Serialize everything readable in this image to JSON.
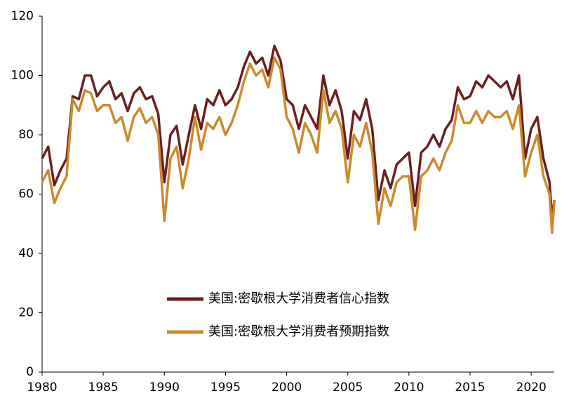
{
  "chart_data": {
    "type": "line",
    "x": [
      1980,
      1980.5,
      1981,
      1981.5,
      1982,
      1982.5,
      1983,
      1983.5,
      1984,
      1984.5,
      1985,
      1985.5,
      1986,
      1986.5,
      1987,
      1987.5,
      1988,
      1988.5,
      1989,
      1989.5,
      1990,
      1990.5,
      1991,
      1991.5,
      1992,
      1992.5,
      1993,
      1993.5,
      1994,
      1994.5,
      1995,
      1995.5,
      1996,
      1996.5,
      1997,
      1997.5,
      1998,
      1998.5,
      1999,
      1999.5,
      2000,
      2000.5,
      2001,
      2001.5,
      2002,
      2002.5,
      2003,
      2003.5,
      2004,
      2004.5,
      2005,
      2005.5,
      2006,
      2006.5,
      2007,
      2007.5,
      2008,
      2008.5,
      2009,
      2009.5,
      2010,
      2010.5,
      2011,
      2011.5,
      2012,
      2012.5,
      2013,
      2013.5,
      2014,
      2014.5,
      2015,
      2015.5,
      2016,
      2016.5,
      2017,
      2017.5,
      2018,
      2018.5,
      2019,
      2019.5,
      2020,
      2020.5,
      2021,
      2021.5,
      2021.7,
      2021.9
    ],
    "series": [
      {
        "name": "美国:密歇根大学消费者信心指数",
        "color": "#6b1f1f",
        "values": [
          72,
          76,
          63,
          68,
          72,
          93,
          92,
          100,
          100,
          93,
          96,
          98,
          92,
          94,
          88,
          94,
          96,
          92,
          93,
          87,
          64,
          80,
          83,
          70,
          80,
          90,
          82,
          92,
          90,
          95,
          90,
          92,
          96,
          103,
          108,
          104,
          106,
          100,
          110,
          105,
          92,
          90,
          82,
          90,
          86,
          82,
          100,
          90,
          95,
          88,
          72,
          88,
          85,
          92,
          82,
          58,
          68,
          62,
          70,
          72,
          74,
          56,
          74,
          76,
          80,
          76,
          82,
          85,
          96,
          92,
          93,
          98,
          96,
          100,
          98,
          96,
          98,
          92,
          100,
          72,
          82,
          86,
          72,
          64,
          52,
          58
        ]
      },
      {
        "name": "美国:密歇根大学消费者预期指数",
        "color": "#c98b2e",
        "values": [
          64,
          68,
          57,
          62,
          66,
          92,
          88,
          95,
          94,
          88,
          90,
          90,
          84,
          86,
          78,
          86,
          89,
          84,
          86,
          80,
          51,
          72,
          76,
          62,
          72,
          86,
          75,
          84,
          82,
          86,
          80,
          84,
          90,
          98,
          104,
          100,
          102,
          96,
          106,
          102,
          86,
          82,
          74,
          84,
          80,
          74,
          95,
          84,
          88,
          82,
          64,
          80,
          76,
          84,
          74,
          50,
          62,
          56,
          64,
          66,
          66,
          48,
          66,
          68,
          72,
          68,
          74,
          78,
          90,
          84,
          84,
          88,
          84,
          88,
          86,
          86,
          88,
          82,
          90,
          66,
          74,
          80,
          66,
          60,
          47,
          58
        ]
      }
    ],
    "xlim": [
      1980,
      2022
    ],
    "xticks": [
      1980,
      1985,
      1990,
      1995,
      2000,
      2005,
      2010,
      2015,
      2020
    ],
    "ylim": [
      0,
      120
    ],
    "yticks": [
      0,
      20,
      40,
      60,
      80,
      100,
      120
    ]
  }
}
